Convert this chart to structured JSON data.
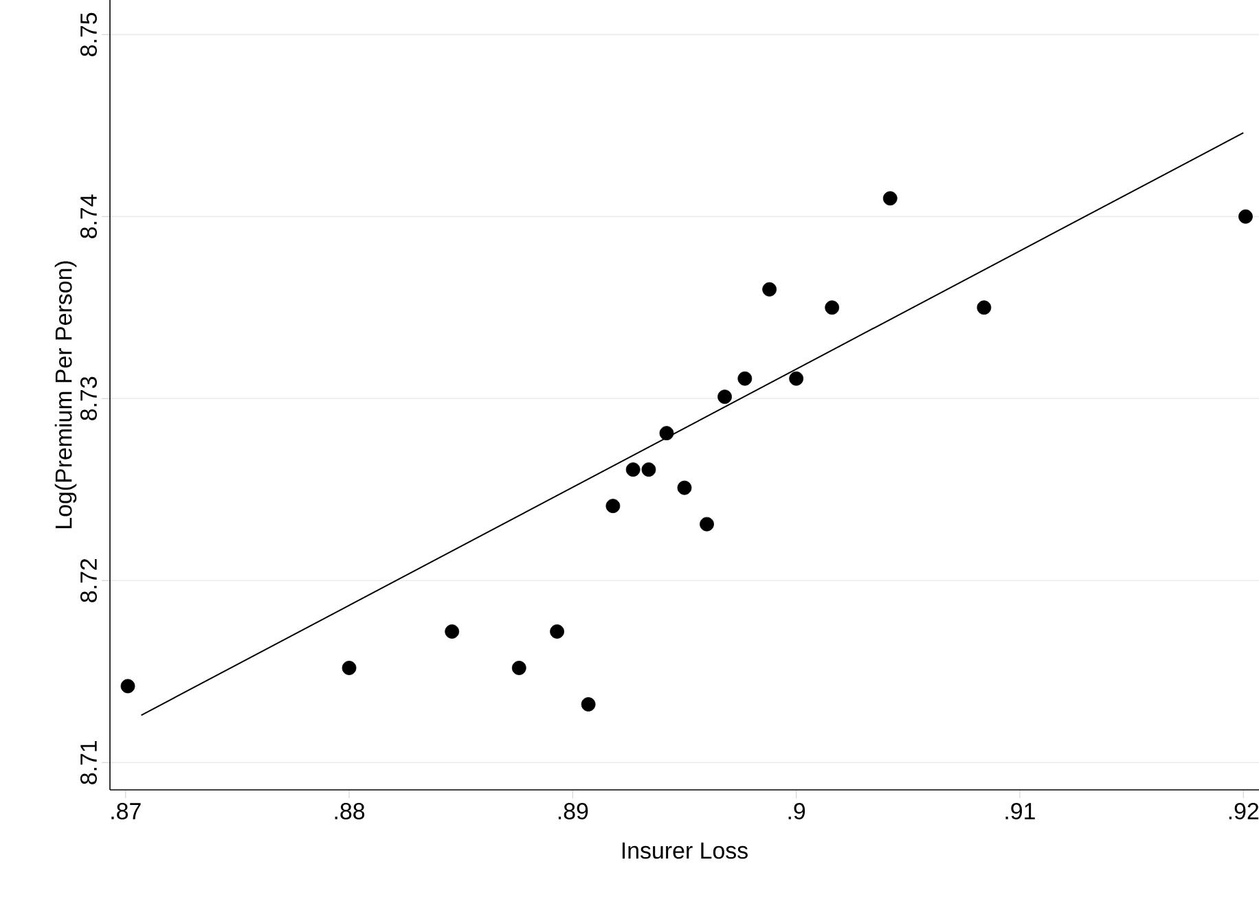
{
  "chart_data": {
    "type": "scatter",
    "xlabel": "Insurer Loss",
    "ylabel": "Log(Premium Per Person)",
    "xlim": [
      0.8693,
      0.9207
    ],
    "ylim": [
      8.7085,
      8.7519
    ],
    "xticks": [
      {
        "value": 0.87,
        "label": ".87"
      },
      {
        "value": 0.88,
        "label": ".88"
      },
      {
        "value": 0.89,
        "label": ".89"
      },
      {
        "value": 0.9,
        "label": ".9"
      },
      {
        "value": 0.91,
        "label": ".91"
      },
      {
        "value": 0.92,
        "label": ".92"
      }
    ],
    "yticks": [
      {
        "value": 8.71,
        "label": "8.71"
      },
      {
        "value": 8.72,
        "label": "8.72"
      },
      {
        "value": 8.73,
        "label": "8.73"
      },
      {
        "value": 8.74,
        "label": "8.74"
      },
      {
        "value": 8.75,
        "label": "8.75"
      }
    ],
    "grid": "y",
    "series": [
      {
        "color": "#000000",
        "marker": "circle",
        "x": [
          0.8701,
          0.88,
          0.8846,
          0.8876,
          0.8893,
          0.8907,
          0.8918,
          0.8927,
          0.8934,
          0.8942,
          0.895,
          0.896,
          0.8968,
          0.8977,
          0.8988,
          0.9,
          0.9016,
          0.9042,
          0.9084,
          0.9201
        ],
        "values": [
          8.7142,
          8.7152,
          8.7172,
          8.7152,
          8.7172,
          8.7132,
          8.7241,
          8.7261,
          8.7261,
          8.7281,
          8.7251,
          8.7231,
          8.7301,
          8.7311,
          8.736,
          8.7311,
          8.735,
          8.741,
          8.735,
          8.74
        ]
      },
      {
        "type": "line",
        "color": "#000000",
        "marker": "none",
        "x": [
          0.8707,
          0.92
        ],
        "values": [
          8.7126,
          8.7446
        ]
      }
    ]
  }
}
